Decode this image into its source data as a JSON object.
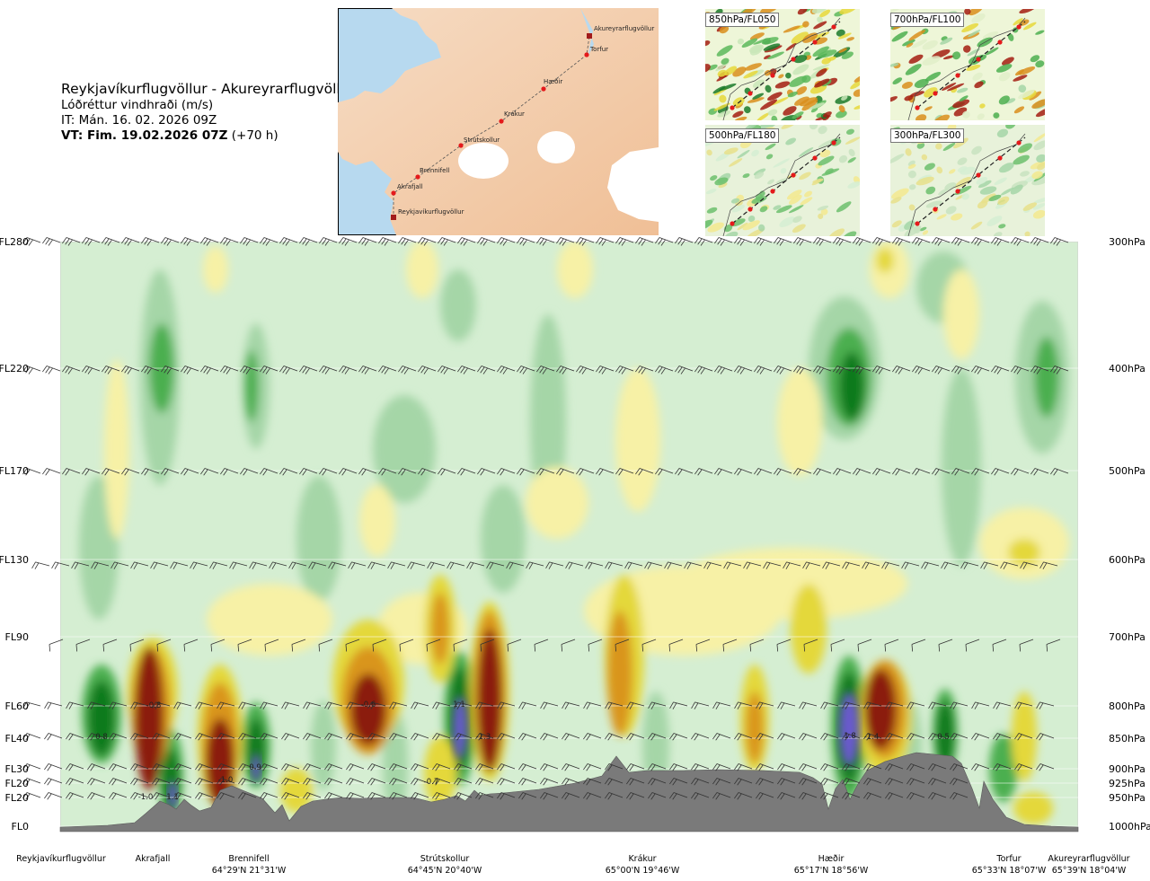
{
  "header": {
    "title": "Reykjavíkurflugvöllur - Akureyrarflugvöllur",
    "subtitle": "Lóðréttur vindhraði (m/s)",
    "issue_time": "IT: Mán. 16. 02. 2026 09Z",
    "valid_time": "VT: Fim. 19.02.2026 07Z",
    "valid_offset": "(+70 h)"
  },
  "overview_map": {
    "places": [
      "Akureyrarflugvöllur",
      "Torfur",
      "Hæðir",
      "Krákur",
      "Strútskollur",
      "Brennifell",
      "Akrafjall",
      "Reykjavíkurflugvöllur"
    ]
  },
  "level_panels": [
    {
      "label": "850hPa/FL050"
    },
    {
      "label": "700hPa/FL100"
    },
    {
      "label": "500hPa/FL180"
    },
    {
      "label": "300hPa/FL300"
    }
  ],
  "colors": {
    "strong_up_blue": "#6a5acd",
    "green_dark": "#0f7a1f",
    "green_mid": "#4caf50",
    "green_light": "#a5d6a7",
    "green_pale": "#d5eed2",
    "yellow_light": "#f7f1a6",
    "yellow": "#e4d83a",
    "orange": "#d9951c",
    "brown": "#8b1a10",
    "terrain": "#7a7a7a"
  },
  "chart_data": {
    "type": "heatmap",
    "quantity": "Lóðréttur vindhraði (m/s)",
    "y_levels_fl": [
      "FL280",
      "FL220",
      "FL170",
      "FL130",
      "FL90",
      "FL60",
      "FL40",
      "FL30",
      "FL20",
      "FL20",
      "FL0"
    ],
    "y_levels_hpa": [
      "300hPa",
      "400hPa",
      "500hPa",
      "600hPa",
      "700hPa",
      "800hPa",
      "850hPa",
      "900hPa",
      "925hPa",
      "950hPa",
      "1000hPa"
    ],
    "x_waypoints": [
      {
        "name": "Reykjavíkurflugvöllur",
        "coord": ""
      },
      {
        "name": "Akrafjall",
        "coord": ""
      },
      {
        "name": "Brennifell",
        "coord": "64°29'N 21°31'W"
      },
      {
        "name": "Strútskollur",
        "coord": "64°45'N 20°40'W"
      },
      {
        "name": "Krákur",
        "coord": "65°00'N 19°46'W"
      },
      {
        "name": "Hæðir",
        "coord": "65°17'N 18°56'W"
      },
      {
        "name": "Torfur",
        "coord": "65°33'N 18°07'W"
      },
      {
        "name": "Akureyrarflugvöllur",
        "coord": "65°39'N 18°04'W"
      }
    ],
    "extrema_labels": [
      "0.8",
      "-0.8",
      "1.1",
      "-1.0",
      "0.9",
      "-0.6",
      "-0.7",
      "1.1",
      "-1.3",
      "1.8",
      "-1.4",
      "0.5"
    ]
  }
}
